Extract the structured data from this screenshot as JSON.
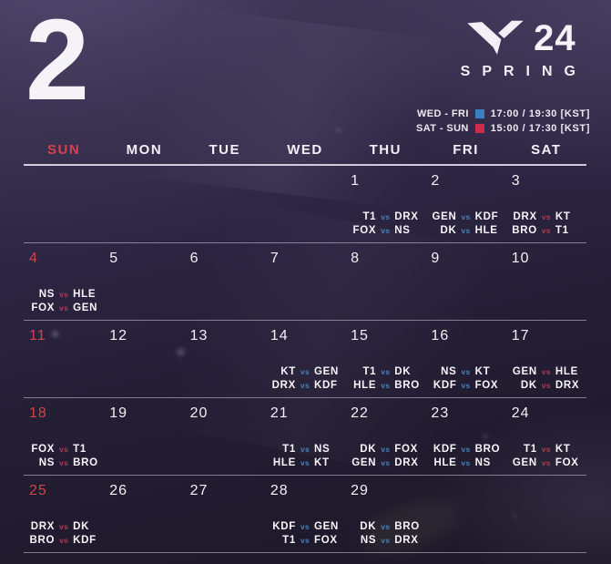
{
  "header": {
    "month_number": "2",
    "logo_year": "24",
    "logo_season": "SPRING",
    "legend": [
      {
        "days": "WED - FRI",
        "color": "#3d7fc4",
        "times": "17:00 / 19:30  [KST]"
      },
      {
        "days": "SAT - SUN",
        "color": "#d12b45",
        "times": "15:00 / 17:30  [KST]"
      }
    ]
  },
  "colors": {
    "red": "#d5414f",
    "vs_blue": "#4b7fb8",
    "vs_red": "#a83f55"
  },
  "calendar": {
    "day_headers": [
      {
        "label": "SUN",
        "highlight": true
      },
      {
        "label": "MON",
        "highlight": false
      },
      {
        "label": "TUE",
        "highlight": false
      },
      {
        "label": "WED",
        "highlight": false
      },
      {
        "label": "THU",
        "highlight": false
      },
      {
        "label": "FRI",
        "highlight": false
      },
      {
        "label": "SAT",
        "highlight": false
      }
    ],
    "weeks": [
      {
        "cells": [
          {
            "date": ""
          },
          {
            "date": ""
          },
          {
            "date": ""
          },
          {
            "date": ""
          },
          {
            "date": "1",
            "matches": [
              {
                "left": "T1",
                "vs": "vs",
                "right": "DRX",
                "slot": "weekday"
              },
              {
                "left": "FOX",
                "vs": "vs",
                "right": "NS",
                "slot": "weekday"
              }
            ]
          },
          {
            "date": "2",
            "matches": [
              {
                "left": "GEN",
                "vs": "vs",
                "right": "KDF",
                "slot": "weekday"
              },
              {
                "left": "DK",
                "vs": "vs",
                "right": "HLE",
                "slot": "weekday"
              }
            ]
          },
          {
            "date": "3",
            "matches": [
              {
                "left": "DRX",
                "vs": "vs",
                "right": "KT",
                "slot": "weekend"
              },
              {
                "left": "BRO",
                "vs": "vs",
                "right": "T1",
                "slot": "weekend"
              }
            ]
          }
        ]
      },
      {
        "cells": [
          {
            "date": "4",
            "red": true,
            "matches": [
              {
                "left": "NS",
                "vs": "vs",
                "right": "HLE",
                "slot": "weekend"
              },
              {
                "left": "FOX",
                "vs": "vs",
                "right": "GEN",
                "slot": "weekend"
              }
            ]
          },
          {
            "date": "5"
          },
          {
            "date": "6"
          },
          {
            "date": "7"
          },
          {
            "date": "8"
          },
          {
            "date": "9"
          },
          {
            "date": "10"
          }
        ]
      },
      {
        "cells": [
          {
            "date": "11",
            "red": true
          },
          {
            "date": "12"
          },
          {
            "date": "13"
          },
          {
            "date": "14",
            "matches": [
              {
                "left": "KT",
                "vs": "vs",
                "right": "GEN",
                "slot": "weekday"
              },
              {
                "left": "DRX",
                "vs": "vs",
                "right": "KDF",
                "slot": "weekday"
              }
            ]
          },
          {
            "date": "15",
            "matches": [
              {
                "left": "T1",
                "vs": "vs",
                "right": "DK",
                "slot": "weekday"
              },
              {
                "left": "HLE",
                "vs": "vs",
                "right": "BRO",
                "slot": "weekday"
              }
            ]
          },
          {
            "date": "16",
            "matches": [
              {
                "left": "NS",
                "vs": "vs",
                "right": "KT",
                "slot": "weekday"
              },
              {
                "left": "KDF",
                "vs": "vs",
                "right": "FOX",
                "slot": "weekday"
              }
            ]
          },
          {
            "date": "17",
            "matches": [
              {
                "left": "GEN",
                "vs": "vs",
                "right": "HLE",
                "slot": "weekend"
              },
              {
                "left": "DK",
                "vs": "vs",
                "right": "DRX",
                "slot": "weekend"
              }
            ]
          }
        ]
      },
      {
        "cells": [
          {
            "date": "18",
            "red": true,
            "matches": [
              {
                "left": "FOX",
                "vs": "vs",
                "right": "T1",
                "slot": "weekend"
              },
              {
                "left": "NS",
                "vs": "vs",
                "right": "BRO",
                "slot": "weekend"
              }
            ]
          },
          {
            "date": "19"
          },
          {
            "date": "20"
          },
          {
            "date": "21",
            "matches": [
              {
                "left": "T1",
                "vs": "vs",
                "right": "NS",
                "slot": "weekday"
              },
              {
                "left": "HLE",
                "vs": "vs",
                "right": "KT",
                "slot": "weekday"
              }
            ]
          },
          {
            "date": "22",
            "matches": [
              {
                "left": "DK",
                "vs": "vs",
                "right": "FOX",
                "slot": "weekday"
              },
              {
                "left": "GEN",
                "vs": "vs",
                "right": "DRX",
                "slot": "weekday"
              }
            ]
          },
          {
            "date": "23",
            "matches": [
              {
                "left": "KDF",
                "vs": "vs",
                "right": "BRO",
                "slot": "weekday"
              },
              {
                "left": "HLE",
                "vs": "vs",
                "right": "NS",
                "slot": "weekday"
              }
            ]
          },
          {
            "date": "24",
            "matches": [
              {
                "left": "T1",
                "vs": "vs",
                "right": "KT",
                "slot": "weekend"
              },
              {
                "left": "GEN",
                "vs": "vs",
                "right": "FOX",
                "slot": "weekend"
              }
            ]
          }
        ]
      },
      {
        "cells": [
          {
            "date": "25",
            "red": true,
            "matches": [
              {
                "left": "DRX",
                "vs": "vs",
                "right": "DK",
                "slot": "weekend"
              },
              {
                "left": "BRO",
                "vs": "vs",
                "right": "KDF",
                "slot": "weekend"
              }
            ]
          },
          {
            "date": "26"
          },
          {
            "date": "27"
          },
          {
            "date": "28",
            "matches": [
              {
                "left": "KDF",
                "vs": "vs",
                "right": "GEN",
                "slot": "weekday"
              },
              {
                "left": "T1",
                "vs": "vs",
                "right": "FOX",
                "slot": "weekday"
              }
            ]
          },
          {
            "date": "29",
            "matches": [
              {
                "left": "DK",
                "vs": "vs",
                "right": "BRO",
                "slot": "weekday"
              },
              {
                "left": "NS",
                "vs": "vs",
                "right": "DRX",
                "slot": "weekday"
              }
            ]
          },
          {
            "date": ""
          },
          {
            "date": ""
          }
        ]
      }
    ]
  }
}
